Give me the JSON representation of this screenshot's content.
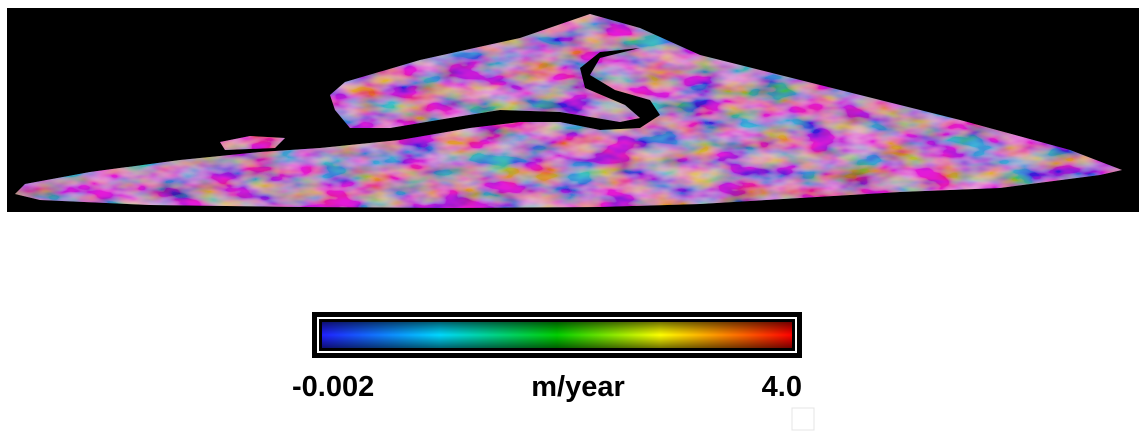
{
  "colorbar": {
    "ticks": [
      -0.002,
      {
        "value": 4,
        "label": "4.0"
      }
    ],
    "unit": "m/year"
  }
}
